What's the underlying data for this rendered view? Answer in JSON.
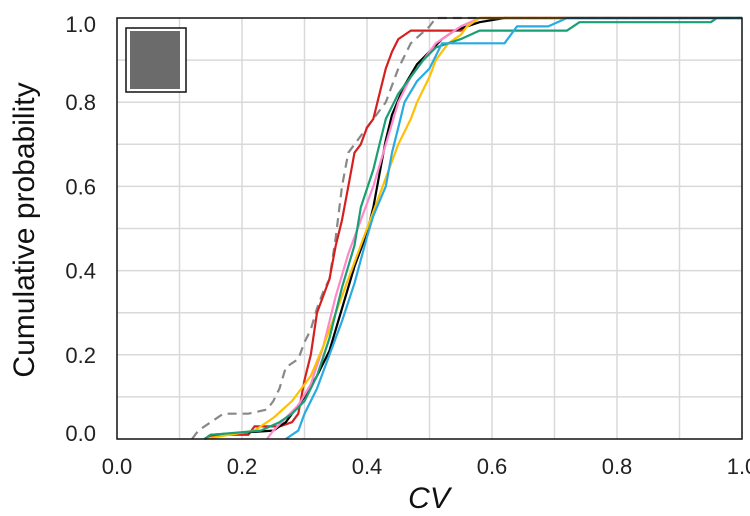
{
  "chart_data": {
    "type": "line",
    "title": "",
    "xlabel": "CV",
    "ylabel": "Cumulative probability",
    "xlim": [
      0,
      1.0
    ],
    "ylim": [
      0,
      1.0
    ],
    "grid": true,
    "xticks": [
      "0.0",
      "0.2",
      "0.4",
      "0.6",
      "0.8",
      "1.0"
    ],
    "yticks": [
      "0.0",
      "0.2",
      "0.4",
      "0.6",
      "0.8",
      "1.0"
    ],
    "legend": {
      "placement": "top-left",
      "swatch_color": "#6b6b6b"
    },
    "series": [
      {
        "color": "#888888",
        "dashed": true,
        "points": [
          [
            0.12,
            0
          ],
          [
            0.13,
            0.02
          ],
          [
            0.15,
            0.04
          ],
          [
            0.17,
            0.06
          ],
          [
            0.21,
            0.06
          ],
          [
            0.24,
            0.07
          ],
          [
            0.25,
            0.09
          ],
          [
            0.26,
            0.12
          ],
          [
            0.27,
            0.17
          ],
          [
            0.29,
            0.19
          ],
          [
            0.3,
            0.23
          ],
          [
            0.31,
            0.26
          ],
          [
            0.32,
            0.31
          ],
          [
            0.33,
            0.35
          ],
          [
            0.34,
            0.38
          ],
          [
            0.35,
            0.48
          ],
          [
            0.36,
            0.6
          ],
          [
            0.37,
            0.68
          ],
          [
            0.39,
            0.72
          ],
          [
            0.4,
            0.74
          ],
          [
            0.42,
            0.78
          ],
          [
            0.43,
            0.8
          ],
          [
            0.45,
            0.88
          ],
          [
            0.47,
            0.94
          ],
          [
            0.5,
            0.98
          ],
          [
            0.51,
            1.0
          ],
          [
            1.0,
            1.0
          ]
        ]
      },
      {
        "color": "#d62020",
        "points": [
          [
            0.14,
            0
          ],
          [
            0.16,
            0.01
          ],
          [
            0.21,
            0.01
          ],
          [
            0.22,
            0.03
          ],
          [
            0.26,
            0.03
          ],
          [
            0.28,
            0.04
          ],
          [
            0.29,
            0.06
          ],
          [
            0.3,
            0.14
          ],
          [
            0.31,
            0.2
          ],
          [
            0.32,
            0.3
          ],
          [
            0.34,
            0.38
          ],
          [
            0.35,
            0.46
          ],
          [
            0.36,
            0.52
          ],
          [
            0.37,
            0.6
          ],
          [
            0.38,
            0.68
          ],
          [
            0.39,
            0.7
          ],
          [
            0.4,
            0.74
          ],
          [
            0.41,
            0.76
          ],
          [
            0.42,
            0.82
          ],
          [
            0.43,
            0.88
          ],
          [
            0.44,
            0.92
          ],
          [
            0.45,
            0.95
          ],
          [
            0.47,
            0.97
          ],
          [
            0.55,
            0.97
          ],
          [
            0.56,
            0.98
          ],
          [
            0.58,
            1.0
          ],
          [
            1.0,
            1.0
          ]
        ]
      },
      {
        "color": "#000000",
        "points": [
          [
            0.14,
            0
          ],
          [
            0.15,
            0.01
          ],
          [
            0.25,
            0.02
          ],
          [
            0.27,
            0.04
          ],
          [
            0.3,
            0.1
          ],
          [
            0.32,
            0.15
          ],
          [
            0.34,
            0.21
          ],
          [
            0.36,
            0.31
          ],
          [
            0.38,
            0.41
          ],
          [
            0.4,
            0.49
          ],
          [
            0.41,
            0.55
          ],
          [
            0.42,
            0.63
          ],
          [
            0.43,
            0.71
          ],
          [
            0.44,
            0.77
          ],
          [
            0.46,
            0.84
          ],
          [
            0.48,
            0.89
          ],
          [
            0.5,
            0.92
          ],
          [
            0.52,
            0.95
          ],
          [
            0.54,
            0.97
          ],
          [
            0.58,
            0.99
          ],
          [
            0.62,
            1.0
          ],
          [
            1.0,
            1.0
          ]
        ]
      },
      {
        "color": "#ff88cc",
        "points": [
          [
            0.24,
            0
          ],
          [
            0.25,
            0.02
          ],
          [
            0.27,
            0.05
          ],
          [
            0.29,
            0.08
          ],
          [
            0.31,
            0.13
          ],
          [
            0.33,
            0.22
          ],
          [
            0.35,
            0.34
          ],
          [
            0.37,
            0.44
          ],
          [
            0.39,
            0.52
          ],
          [
            0.41,
            0.6
          ],
          [
            0.43,
            0.7
          ],
          [
            0.45,
            0.8
          ],
          [
            0.47,
            0.86
          ],
          [
            0.49,
            0.9
          ],
          [
            0.51,
            0.94
          ],
          [
            0.53,
            0.96
          ],
          [
            0.55,
            0.98
          ],
          [
            0.58,
            1.0
          ],
          [
            1.0,
            1.0
          ]
        ]
      },
      {
        "color": "#ffc000",
        "points": [
          [
            0.14,
            0
          ],
          [
            0.18,
            0.01
          ],
          [
            0.22,
            0.02
          ],
          [
            0.25,
            0.05
          ],
          [
            0.28,
            0.09
          ],
          [
            0.31,
            0.15
          ],
          [
            0.33,
            0.22
          ],
          [
            0.35,
            0.3
          ],
          [
            0.37,
            0.38
          ],
          [
            0.39,
            0.46
          ],
          [
            0.41,
            0.54
          ],
          [
            0.43,
            0.62
          ],
          [
            0.45,
            0.7
          ],
          [
            0.47,
            0.76
          ],
          [
            0.48,
            0.8
          ],
          [
            0.5,
            0.86
          ],
          [
            0.51,
            0.9
          ],
          [
            0.53,
            0.94
          ],
          [
            0.55,
            0.96
          ],
          [
            0.56,
            0.98
          ],
          [
            0.58,
            1.0
          ],
          [
            1.0,
            1.0
          ]
        ]
      },
      {
        "color": "#1a9e74",
        "points": [
          [
            0.14,
            0
          ],
          [
            0.15,
            0.01
          ],
          [
            0.23,
            0.02
          ],
          [
            0.26,
            0.04
          ],
          [
            0.28,
            0.06
          ],
          [
            0.3,
            0.09
          ],
          [
            0.32,
            0.15
          ],
          [
            0.34,
            0.24
          ],
          [
            0.36,
            0.36
          ],
          [
            0.38,
            0.46
          ],
          [
            0.39,
            0.55
          ],
          [
            0.41,
            0.64
          ],
          [
            0.42,
            0.7
          ],
          [
            0.43,
            0.76
          ],
          [
            0.45,
            0.82
          ],
          [
            0.47,
            0.86
          ],
          [
            0.49,
            0.9
          ],
          [
            0.51,
            0.93
          ],
          [
            0.55,
            0.95
          ],
          [
            0.58,
            0.97
          ],
          [
            0.72,
            0.97
          ],
          [
            0.74,
            0.99
          ],
          [
            0.95,
            0.99
          ],
          [
            0.96,
            1.0
          ],
          [
            1.0,
            1.0
          ]
        ]
      },
      {
        "color": "#29abe2",
        "points": [
          [
            0.27,
            0
          ],
          [
            0.29,
            0.02
          ],
          [
            0.3,
            0.06
          ],
          [
            0.32,
            0.12
          ],
          [
            0.34,
            0.2
          ],
          [
            0.36,
            0.28
          ],
          [
            0.38,
            0.37
          ],
          [
            0.4,
            0.48
          ],
          [
            0.41,
            0.53
          ],
          [
            0.43,
            0.6
          ],
          [
            0.44,
            0.68
          ],
          [
            0.45,
            0.74
          ],
          [
            0.46,
            0.8
          ],
          [
            0.48,
            0.85
          ],
          [
            0.5,
            0.88
          ],
          [
            0.51,
            0.91
          ],
          [
            0.52,
            0.94
          ],
          [
            0.62,
            0.94
          ],
          [
            0.63,
            0.96
          ],
          [
            0.64,
            0.98
          ],
          [
            0.69,
            0.98
          ],
          [
            0.72,
            1.0
          ],
          [
            1.0,
            1.0
          ]
        ]
      }
    ]
  }
}
